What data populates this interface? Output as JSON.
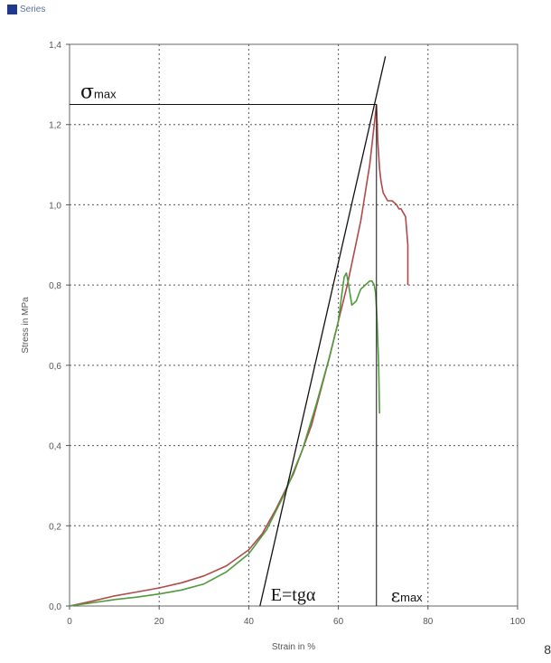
{
  "legend": {
    "icon": "series-swatch-icon",
    "label": "Series"
  },
  "corner_label": "8",
  "chart_data": {
    "type": "line",
    "xlabel": "Strain in %",
    "ylabel": "Stress in MPa",
    "xlim": [
      0,
      100
    ],
    "ylim": [
      0,
      1.4
    ],
    "x_ticks": [
      "0",
      "20",
      "40",
      "60",
      "80",
      "100"
    ],
    "y_ticks": [
      "0,0",
      "0,2",
      "0,4",
      "0,6",
      "0,8",
      "1,0",
      "1,2",
      "1,4"
    ],
    "grid": true,
    "colors": {
      "red": "#b04a4a",
      "green": "#4f9a3c",
      "annotation": "#111111"
    },
    "series": [
      {
        "color": "#b04a4a",
        "points": [
          [
            0,
            0
          ],
          [
            5,
            0.012
          ],
          [
            10,
            0.025
          ],
          [
            15,
            0.035
          ],
          [
            20,
            0.045
          ],
          [
            25,
            0.058
          ],
          [
            30,
            0.075
          ],
          [
            35,
            0.1
          ],
          [
            40,
            0.14
          ],
          [
            43,
            0.18
          ],
          [
            46,
            0.24
          ],
          [
            50,
            0.33
          ],
          [
            54,
            0.45
          ],
          [
            58,
            0.62
          ],
          [
            62,
            0.8
          ],
          [
            65,
            0.96
          ],
          [
            67,
            1.1
          ],
          [
            68,
            1.2
          ],
          [
            68.5,
            1.25
          ],
          [
            68.8,
            1.16
          ],
          [
            69.2,
            1.09
          ],
          [
            69.5,
            1.06
          ],
          [
            70,
            1.03
          ],
          [
            71,
            1.01
          ],
          [
            72,
            1.01
          ],
          [
            73,
            1.0
          ],
          [
            73.5,
            0.99
          ],
          [
            74,
            0.99
          ],
          [
            74.5,
            0.98
          ],
          [
            75,
            0.97
          ],
          [
            75.5,
            0.9
          ],
          [
            75.5,
            0.8
          ]
        ]
      },
      {
        "color": "#4f9a3c",
        "points": [
          [
            0,
            0
          ],
          [
            5,
            0.008
          ],
          [
            10,
            0.016
          ],
          [
            15,
            0.022
          ],
          [
            20,
            0.03
          ],
          [
            25,
            0.04
          ],
          [
            30,
            0.055
          ],
          [
            35,
            0.085
          ],
          [
            40,
            0.13
          ],
          [
            44,
            0.19
          ],
          [
            48,
            0.28
          ],
          [
            52,
            0.39
          ],
          [
            55,
            0.5
          ],
          [
            58,
            0.62
          ],
          [
            60,
            0.71
          ],
          [
            60.8,
            0.78
          ],
          [
            61.3,
            0.82
          ],
          [
            61.8,
            0.83
          ],
          [
            62.3,
            0.8
          ],
          [
            63,
            0.75
          ],
          [
            64,
            0.76
          ],
          [
            65,
            0.79
          ],
          [
            66,
            0.8
          ],
          [
            67,
            0.81
          ],
          [
            67.5,
            0.81
          ],
          [
            68,
            0.8
          ],
          [
            68.3,
            0.78
          ],
          [
            68.6,
            0.72
          ],
          [
            69,
            0.6
          ],
          [
            69.2,
            0.48
          ]
        ]
      }
    ],
    "annotations": {
      "tangent": {
        "from": [
          42.5,
          0.0
        ],
        "to": [
          70.5,
          1.37
        ]
      },
      "sigma_max_value": 1.25,
      "epsilon_max_value": 68.5,
      "sigma_label": "σ",
      "sigma_sub": "max",
      "modulus_label": "E=tgα",
      "epsilon_label": "ε",
      "epsilon_sub": "max"
    }
  }
}
